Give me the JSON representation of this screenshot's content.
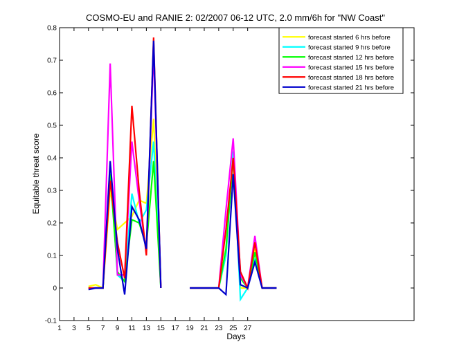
{
  "chart_data": {
    "type": "line",
    "title": "COSMO-EU and RANIE 2: 02/2007 06-12 UTC, 2.0 mm/6h for \"NW Coast\"",
    "xlabel": "Days",
    "ylabel": "Equitable threat score",
    "xlim": [
      1,
      50
    ],
    "ylim": [
      -0.1,
      0.8
    ],
    "xticks": [
      1,
      3,
      5,
      7,
      9,
      11,
      13,
      15,
      17,
      19,
      21,
      23,
      25,
      27
    ],
    "yticks": [
      -0.1,
      0,
      0.1,
      0.2,
      0.3,
      0.4,
      0.5,
      0.6,
      0.7,
      0.8
    ],
    "grid": false,
    "legend_position": "top-right",
    "series": [
      {
        "name": "forecast started 6 hrs before",
        "color": "#ffff00",
        "x": [
          5,
          6,
          7,
          8,
          9,
          10,
          11,
          12,
          13,
          14,
          15,
          null,
          19,
          20,
          21,
          22,
          23,
          24,
          25,
          26,
          27,
          28,
          29,
          30,
          31
        ],
        "y": [
          0.005,
          0.01,
          0.0,
          0.3,
          0.18,
          0.2,
          0.22,
          0.27,
          0.26,
          0.52,
          0.0,
          null,
          0,
          0,
          0,
          0,
          0.0,
          0.1,
          0.42,
          0.0,
          0.0,
          0.12,
          0.0,
          0.0,
          0.0
        ]
      },
      {
        "name": "forecast started 9 hrs before",
        "color": "#00ffff",
        "x": [
          5,
          6,
          7,
          8,
          9,
          10,
          11,
          12,
          13,
          14,
          15,
          null,
          19,
          20,
          21,
          22,
          23,
          24,
          25,
          26,
          27,
          28,
          29,
          30,
          31
        ],
        "y": [
          0.0,
          0.0,
          0.0,
          0.38,
          0.04,
          0.02,
          0.29,
          0.2,
          0.24,
          0.45,
          0.0,
          null,
          0,
          0,
          0,
          0,
          0.0,
          0.1,
          0.42,
          -0.035,
          0.0,
          0.09,
          0.0,
          0.0,
          0.0
        ]
      },
      {
        "name": "forecast started 12 hrs before",
        "color": "#00ff00",
        "x": [
          5,
          6,
          7,
          8,
          9,
          10,
          11,
          12,
          13,
          14,
          15,
          null,
          19,
          20,
          21,
          22,
          23,
          24,
          25,
          26,
          27,
          28,
          29,
          30,
          31
        ],
        "y": [
          0.0,
          0.0,
          0.0,
          0.35,
          0.05,
          0.02,
          0.21,
          0.2,
          0.13,
          0.39,
          0.0,
          null,
          0,
          0,
          0,
          0,
          0.0,
          0.12,
          0.4,
          0.03,
          0.0,
          0.11,
          0.0,
          0.0,
          0.0
        ]
      },
      {
        "name": "forecast started 15 hrs before",
        "color": "#ff00ff",
        "x": [
          5,
          6,
          7,
          8,
          9,
          10,
          11,
          12,
          13,
          14,
          15,
          null,
          19,
          20,
          21,
          22,
          23,
          24,
          25,
          26,
          27,
          28,
          29,
          30,
          31
        ],
        "y": [
          0.0,
          0.0,
          0.0,
          0.69,
          0.04,
          0.04,
          0.45,
          0.27,
          0.11,
          0.73,
          0.0,
          null,
          0,
          0,
          0,
          0,
          0.0,
          0.24,
          0.46,
          0.04,
          0.0,
          0.16,
          0.0,
          0.0,
          0.0
        ]
      },
      {
        "name": "forecast started 18 hrs before",
        "color": "#ff0000",
        "x": [
          5,
          6,
          7,
          8,
          9,
          10,
          11,
          12,
          13,
          14,
          15,
          null,
          19,
          20,
          21,
          22,
          23,
          24,
          25,
          26,
          27,
          28,
          29,
          30,
          31
        ],
        "y": [
          0.0,
          0.0,
          0.0,
          0.33,
          0.14,
          0.03,
          0.56,
          0.3,
          0.1,
          0.77,
          0.0,
          null,
          0,
          0,
          0,
          0,
          0.0,
          0.18,
          0.4,
          0.05,
          0.0,
          0.14,
          0.0,
          0.0,
          0.0
        ]
      },
      {
        "name": "forecast started 21 hrs before",
        "color": "#0000cc",
        "x": [
          5,
          6,
          7,
          8,
          9,
          10,
          11,
          12,
          13,
          14,
          15,
          null,
          19,
          20,
          21,
          22,
          23,
          24,
          25,
          26,
          27,
          28,
          29,
          30,
          31
        ],
        "y": [
          -0.005,
          0.0,
          0.0,
          0.39,
          0.12,
          -0.02,
          0.25,
          0.21,
          0.12,
          0.76,
          0.0,
          null,
          0,
          0,
          0,
          0,
          0.0,
          -0.02,
          0.35,
          0.01,
          0.0,
          0.08,
          0.0,
          0.0,
          0.0
        ]
      }
    ]
  }
}
